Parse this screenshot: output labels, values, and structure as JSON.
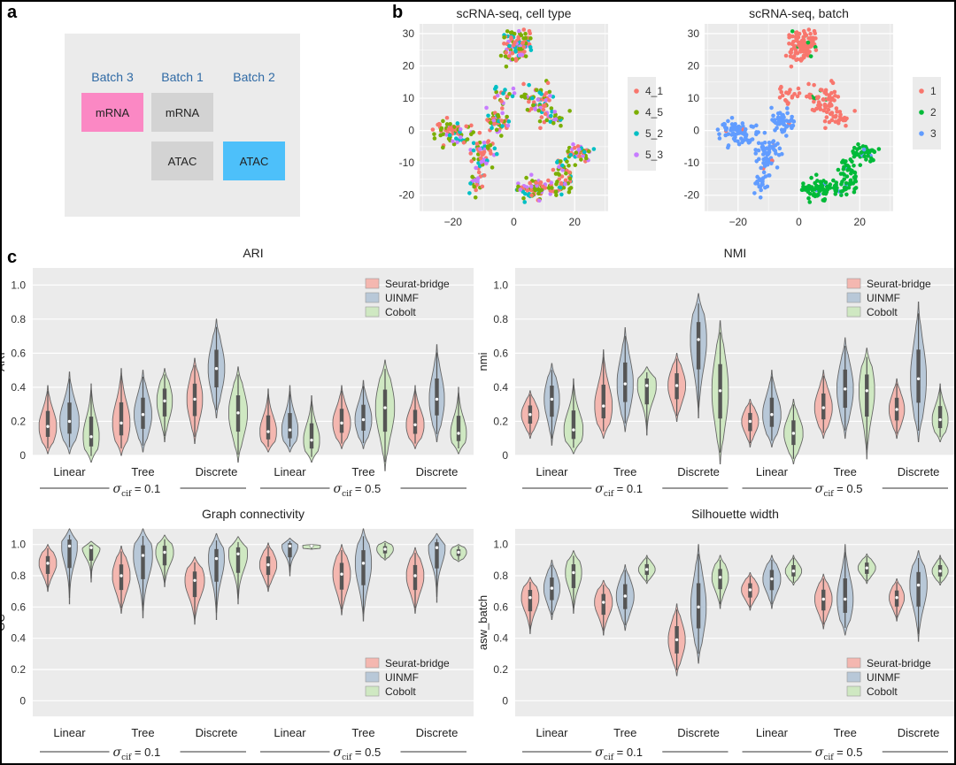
{
  "panel_labels": {
    "a": "a",
    "b": "b",
    "c": "c"
  },
  "panel_a": {
    "batch_headers": [
      "Batch 3",
      "Batch 1",
      "Batch 2"
    ],
    "boxes": [
      {
        "label": "mRNA",
        "color": "#fb88c4"
      },
      {
        "label": "mRNA",
        "color": "#d3d3d3"
      },
      {
        "label": "ATAC",
        "color": "#d3d3d3"
      },
      {
        "label": "ATAC",
        "color": "#4dc0fa"
      }
    ]
  },
  "method_colors": {
    "Seurat-bridge": "#f4b7b0",
    "UINMF": "#b8c8d8",
    "Cobolt": "#cfe8c2"
  },
  "sigma_labels": [
    "= 0.1",
    "= 0.5"
  ],
  "sigma_symbol": "σ",
  "sigma_sub": "cif",
  "chart_data": [
    {
      "type": "scatter",
      "title": "scRNA-seq, cell type",
      "xlim": [
        -31,
        31
      ],
      "ylim": [
        -25,
        33
      ],
      "xticks": [
        -20,
        0,
        20
      ],
      "yticks": [
        -20,
        -10,
        0,
        10,
        20,
        30
      ],
      "legend_placement": "right",
      "series": [
        {
          "name": "4_1",
          "color": "#f8766d"
        },
        {
          "name": "4_5",
          "color": "#7cae00"
        },
        {
          "name": "5_2",
          "color": "#00bfc4"
        },
        {
          "name": "5_3",
          "color": "#c77cff"
        }
      ],
      "grid": true
    },
    {
      "type": "scatter",
      "title": "scRNA-seq, batch",
      "xlim": [
        -31,
        31
      ],
      "ylim": [
        -25,
        33
      ],
      "xticks": [
        -20,
        0,
        20
      ],
      "yticks": [
        -20,
        -10,
        0,
        10,
        20,
        30
      ],
      "legend_placement": "right",
      "series": [
        {
          "name": "1",
          "color": "#f8766d"
        },
        {
          "name": "2",
          "color": "#00ba38"
        },
        {
          "name": "3",
          "color": "#619cff"
        }
      ],
      "grid": true
    },
    {
      "type": "violin",
      "title": "ARI",
      "ylabel": "ARI",
      "ylim": [
        0,
        1.1
      ],
      "yticks": [
        0,
        0.2,
        0.4,
        0.6,
        0.8,
        1.0
      ],
      "categories": [
        "Linear",
        "Tree",
        "Discrete",
        "Linear",
        "Tree",
        "Discrete"
      ],
      "methods": [
        "Seurat-bridge",
        "UINMF",
        "Cobolt"
      ],
      "legend_placement": "top-right",
      "medians": [
        [
          0.17,
          0.2,
          0.11
        ],
        [
          0.19,
          0.24,
          0.32
        ],
        [
          0.33,
          0.51,
          0.25
        ],
        [
          0.14,
          0.15,
          0.09
        ],
        [
          0.19,
          0.21,
          0.28
        ],
        [
          0.18,
          0.33,
          0.13
        ]
      ],
      "ranges": [
        [
          [
            0.01,
            0.41
          ],
          [
            0.01,
            0.49
          ],
          [
            -0.04,
            0.42
          ]
        ],
        [
          [
            0.0,
            0.51
          ],
          [
            0.02,
            0.5
          ],
          [
            0.08,
            0.51
          ]
        ],
        [
          [
            0.07,
            0.57
          ],
          [
            0.22,
            0.8
          ],
          [
            -0.04,
            0.52
          ]
        ],
        [
          [
            0.02,
            0.39
          ],
          [
            0.02,
            0.41
          ],
          [
            -0.04,
            0.35
          ]
        ],
        [
          [
            0.04,
            0.41
          ],
          [
            0.04,
            0.44
          ],
          [
            -0.09,
            0.56
          ]
        ],
        [
          [
            0.04,
            0.41
          ],
          [
            0.08,
            0.65
          ],
          [
            0.01,
            0.4
          ]
        ]
      ]
    },
    {
      "type": "violin",
      "title": "NMI",
      "ylabel": "nmi",
      "ylim": [
        0,
        1.1
      ],
      "yticks": [
        0,
        0.2,
        0.4,
        0.6,
        0.8,
        1.0
      ],
      "categories": [
        "Linear",
        "Tree",
        "Discrete",
        "Linear",
        "Tree",
        "Discrete"
      ],
      "methods": [
        "Seurat-bridge",
        "UINMF",
        "Cobolt"
      ],
      "legend_placement": "top-right",
      "medians": [
        [
          0.24,
          0.33,
          0.15
        ],
        [
          0.29,
          0.42,
          0.41
        ],
        [
          0.41,
          0.68,
          0.38
        ],
        [
          0.2,
          0.24,
          0.13
        ],
        [
          0.28,
          0.39,
          0.38
        ],
        [
          0.27,
          0.45,
          0.21
        ]
      ],
      "ranges": [
        [
          [
            0.1,
            0.38
          ],
          [
            0.06,
            0.54
          ],
          [
            0.01,
            0.45
          ]
        ],
        [
          [
            0.1,
            0.62
          ],
          [
            0.14,
            0.75
          ],
          [
            0.12,
            0.52
          ]
        ],
        [
          [
            0.2,
            0.6
          ],
          [
            0.22,
            0.95
          ],
          [
            -0.05,
            0.79
          ]
        ],
        [
          [
            0.05,
            0.33
          ],
          [
            0.05,
            0.5
          ],
          [
            -0.05,
            0.33
          ]
        ],
        [
          [
            0.1,
            0.5
          ],
          [
            0.1,
            0.69
          ],
          [
            -0.02,
            0.63
          ]
        ],
        [
          [
            0.1,
            0.45
          ],
          [
            0.08,
            0.9
          ],
          [
            0.08,
            0.42
          ]
        ]
      ]
    },
    {
      "type": "violin",
      "title": "Graph connectivity",
      "ylabel": "GC",
      "ylim": [
        -0.1,
        1.1
      ],
      "yticks": [
        0,
        0.2,
        0.4,
        0.6,
        0.8,
        1.0
      ],
      "categories": [
        "Linear",
        "Tree",
        "Discrete",
        "Linear",
        "Tree",
        "Discrete"
      ],
      "methods": [
        "Seurat-bridge",
        "UINMF",
        "Cobolt"
      ],
      "legend_placement": "bottom-right",
      "medians": [
        [
          0.88,
          0.99,
          0.98
        ],
        [
          0.8,
          0.93,
          0.95
        ],
        [
          0.77,
          0.91,
          0.94
        ],
        [
          0.87,
          0.99,
          0.99
        ],
        [
          0.81,
          0.88,
          0.97
        ],
        [
          0.8,
          0.98,
          0.95
        ]
      ],
      "ranges": [
        [
          [
            0.7,
            1.0
          ],
          [
            0.62,
            1.1
          ],
          [
            0.76,
            1.02
          ]
        ],
        [
          [
            0.56,
            0.99
          ],
          [
            0.53,
            1.1
          ],
          [
            0.73,
            1.06
          ]
        ],
        [
          [
            0.49,
            0.92
          ],
          [
            0.52,
            1.07
          ],
          [
            0.62,
            1.05
          ]
        ],
        [
          [
            0.7,
            1.01
          ],
          [
            0.8,
            1.04
          ],
          [
            0.97,
            1.0
          ]
        ],
        [
          [
            0.55,
            1.0
          ],
          [
            0.51,
            1.1
          ],
          [
            0.9,
            1.02
          ]
        ],
        [
          [
            0.56,
            0.98
          ],
          [
            0.63,
            1.07
          ],
          [
            0.89,
            1.0
          ]
        ]
      ]
    },
    {
      "type": "violin",
      "title": "Silhouette width",
      "ylabel": "asw_batch",
      "ylim": [
        -0.1,
        1.1
      ],
      "yticks": [
        0,
        0.2,
        0.4,
        0.6,
        0.8,
        1.0
      ],
      "categories": [
        "Linear",
        "Tree",
        "Discrete",
        "Linear",
        "Tree",
        "Discrete"
      ],
      "methods": [
        "Seurat-bridge",
        "UINMF",
        "Cobolt"
      ],
      "legend_placement": "bottom-right",
      "medians": [
        [
          0.66,
          0.72,
          0.82
        ],
        [
          0.63,
          0.67,
          0.84
        ],
        [
          0.39,
          0.6,
          0.79
        ],
        [
          0.71,
          0.78,
          0.83
        ],
        [
          0.65,
          0.65,
          0.85
        ],
        [
          0.66,
          0.74,
          0.83
        ]
      ],
      "ranges": [
        [
          [
            0.43,
            0.79
          ],
          [
            0.52,
            0.9
          ],
          [
            0.56,
            0.96
          ]
        ],
        [
          [
            0.42,
            0.77
          ],
          [
            0.45,
            0.87
          ],
          [
            0.75,
            0.93
          ]
        ],
        [
          [
            0.16,
            0.62
          ],
          [
            0.24,
            1.0
          ],
          [
            0.59,
            0.93
          ]
        ],
        [
          [
            0.58,
            0.82
          ],
          [
            0.59,
            0.93
          ],
          [
            0.74,
            0.93
          ]
        ],
        [
          [
            0.46,
            0.81
          ],
          [
            0.42,
            1.0
          ],
          [
            0.75,
            0.94
          ]
        ],
        [
          [
            0.51,
            0.78
          ],
          [
            0.38,
            0.96
          ],
          [
            0.74,
            0.93
          ]
        ]
      ]
    }
  ]
}
